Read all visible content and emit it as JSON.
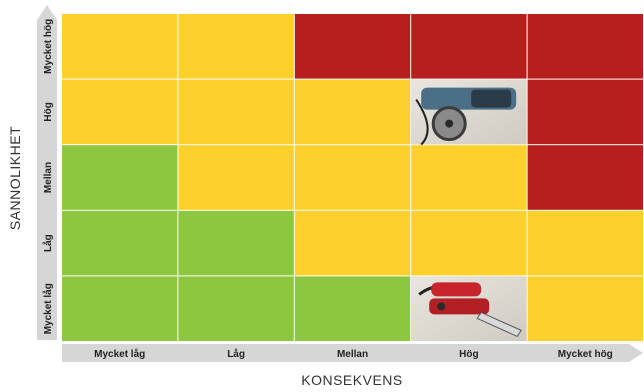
{
  "chart_data": {
    "type": "heatmap",
    "title": "",
    "xlabel": "KONSEKVENS",
    "ylabel": "SANNOLIKHET",
    "x_categories": [
      "Mycket låg",
      "Låg",
      "Mellan",
      "Hög",
      "Mycket hög"
    ],
    "y_categories": [
      "Mycket låg",
      "Låg",
      "Mellan",
      "Hög",
      "Mycket hög"
    ],
    "levels": [
      "low",
      "medium",
      "high"
    ],
    "level_colors": {
      "low": "#8dc63f",
      "medium": "#fdd02b",
      "high": "#b71f1f"
    },
    "cells": [
      [
        "low",
        "low",
        "low",
        "medium",
        "medium"
      ],
      [
        "low",
        "low",
        "medium",
        "medium",
        "medium"
      ],
      [
        "low",
        "medium",
        "medium",
        "medium",
        "high"
      ],
      [
        "medium",
        "medium",
        "medium",
        "medium",
        "high"
      ],
      [
        "medium",
        "medium",
        "high",
        "high",
        "high"
      ]
    ],
    "images": [
      {
        "x": "Hög",
        "y": "Hög",
        "icon": "angle-grinder-photo"
      },
      {
        "x": "Hög",
        "y": "Mycket låg",
        "icon": "reciprocating-saw-photo"
      }
    ],
    "grid": true
  }
}
